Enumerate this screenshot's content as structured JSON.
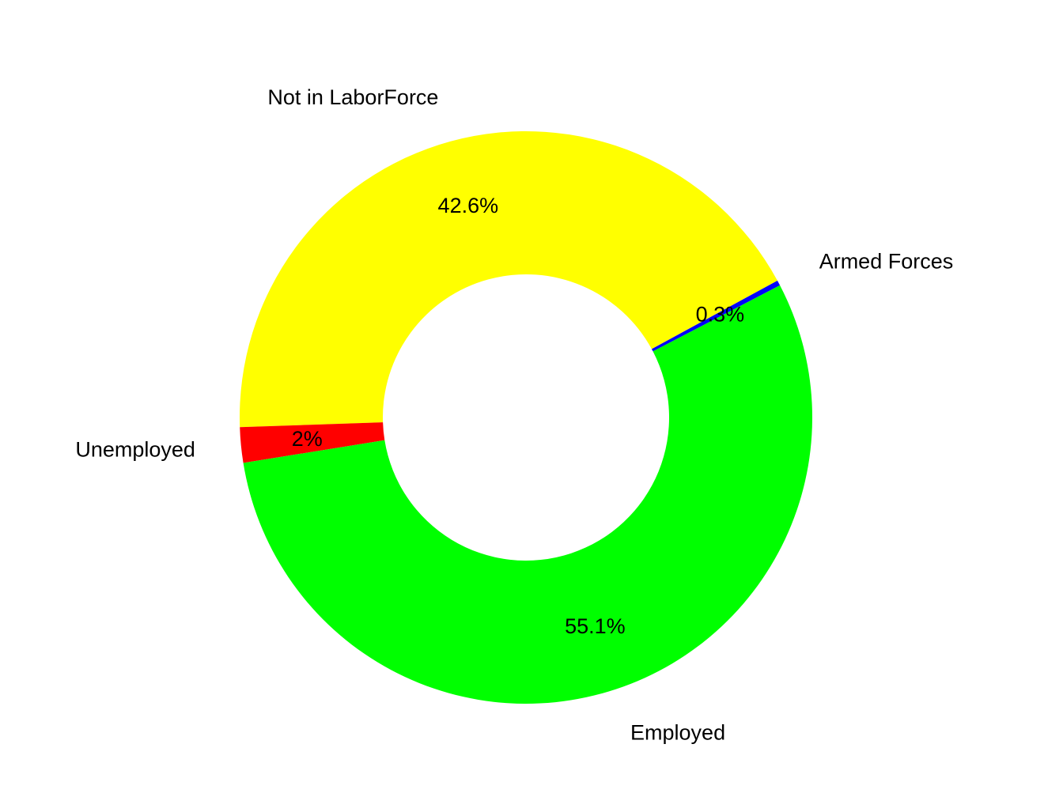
{
  "chart_data": {
    "type": "pie",
    "style": "donut",
    "title": "",
    "slices": [
      {
        "category": "Armed Forces",
        "value": 0.3,
        "percent_label": "0.3%",
        "color": "#0000FF"
      },
      {
        "category": "Not in LaborForce",
        "value": 42.6,
        "percent_label": "42.6%",
        "color": "#FFFF00"
      },
      {
        "category": "Unemployed",
        "value": 2.0,
        "percent_label": "2%",
        "color": "#FF0000"
      },
      {
        "category": "Employed",
        "value": 55.1,
        "percent_label": "55.1%",
        "color": "#00FF00"
      }
    ],
    "legend": "none",
    "grid": false
  }
}
